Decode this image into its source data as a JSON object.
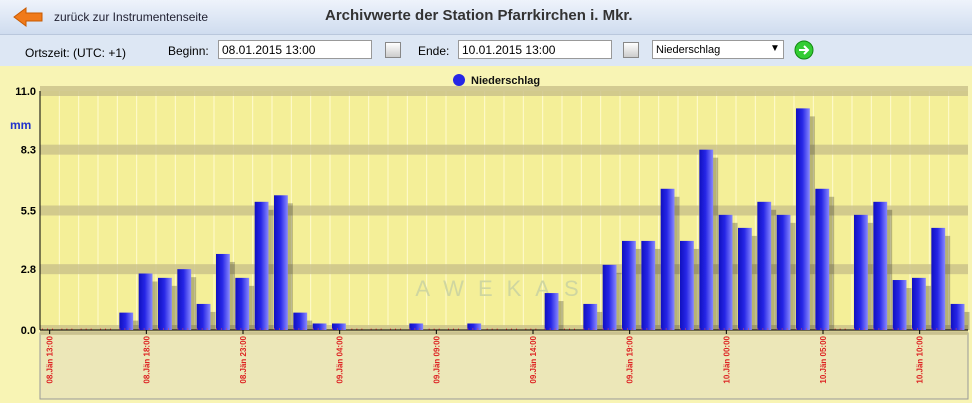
{
  "header": {
    "back_link": "zurück zur Instrumentenseite",
    "title": "Archivwerte der Station Pfarrkirchen i. Mkr."
  },
  "controls": {
    "timezone": "Ortszeit: (UTC: +1)",
    "begin_label": "Beginn:",
    "begin_value": "08.01.2015 13:00",
    "end_label": "Ende:",
    "end_value": "10.01.2015 13:00",
    "select": "Niederschlag"
  },
  "chart_data": {
    "type": "bar",
    "ylabel": "mm",
    "watermark": "AWEKAS",
    "categories": [
      "08.Jän 13:00",
      null,
      null,
      null,
      null,
      "08.Jän 18:00",
      null,
      null,
      null,
      null,
      "08.Jän 23:00",
      null,
      null,
      null,
      null,
      "09.Jän 04:00",
      null,
      null,
      null,
      null,
      "09.Jän 09:00",
      null,
      null,
      null,
      null,
      "09.Jän 14:00",
      null,
      null,
      null,
      null,
      "09.Jän 19:00",
      null,
      null,
      null,
      null,
      "10.Jän 00:00",
      null,
      null,
      null,
      null,
      "10.Jän 05:00",
      null,
      null,
      null,
      null,
      "10.Jän 10:00",
      null,
      null
    ],
    "series": [
      {
        "name": "Niederschlag",
        "color": "#2626e6",
        "values": [
          0,
          0,
          0,
          0,
          0.8,
          2.6,
          2.4,
          2.8,
          1.2,
          3.5,
          2.4,
          5.9,
          6.2,
          0.8,
          0.3,
          0.3,
          0,
          0,
          0,
          0.3,
          0,
          0,
          0.3,
          0,
          0,
          0,
          1.7,
          0,
          1.2,
          3.0,
          4.1,
          4.1,
          6.5,
          4.1,
          8.3,
          5.3,
          4.7,
          5.9,
          5.3,
          10.2,
          6.5,
          0,
          5.3,
          5.9,
          2.3,
          2.4,
          4.7,
          1.2
        ]
      }
    ],
    "ylim": [
      0,
      11
    ],
    "yticks": [
      {
        "value": 0,
        "label": "0.0"
      },
      2.8,
      5.5,
      8.3,
      {
        "value": 11,
        "label": "11.0"
      }
    ],
    "grid": true
  }
}
